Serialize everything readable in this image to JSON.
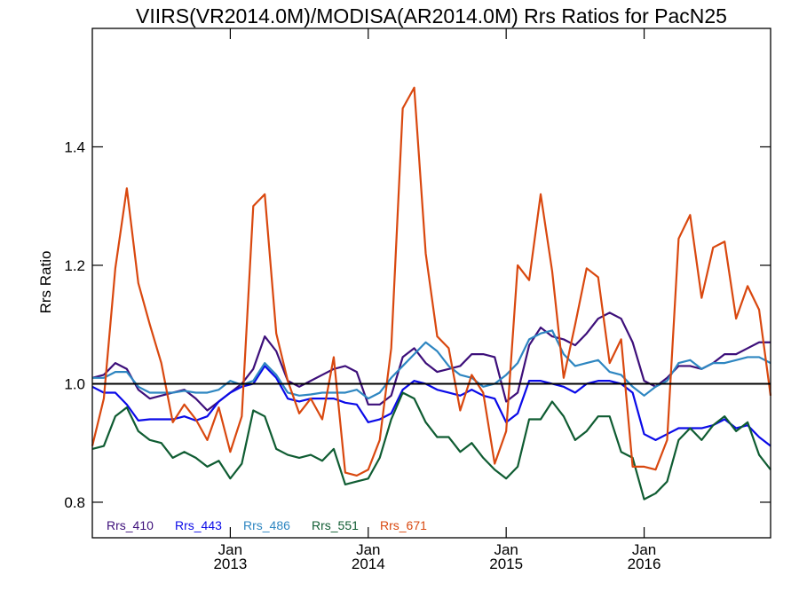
{
  "chart_data": {
    "type": "line",
    "title": "VIIRS(VR2014.0M)/MODISA(AR2014.0M)  Rrs Ratios for PacN25",
    "xlabel": "",
    "ylabel": "Rrs Ratio",
    "x_start": "2012-01",
    "x_end": "2016-12",
    "x_ticks": [
      {
        "month": "Jan",
        "year": "2013"
      },
      {
        "month": "Jan",
        "year": "2014"
      },
      {
        "month": "Jan",
        "year": "2015"
      },
      {
        "month": "Jan",
        "year": "2016"
      }
    ],
    "yticks": [
      "0.8",
      "1.0",
      "1.2",
      "1.4"
    ],
    "ylim": [
      0.74,
      1.6
    ],
    "reference_line": 1.0,
    "legend_position": "bottom-left",
    "x": [
      "2012-01",
      "2012-02",
      "2012-03",
      "2012-04",
      "2012-05",
      "2012-06",
      "2012-07",
      "2012-08",
      "2012-09",
      "2012-10",
      "2012-11",
      "2012-12",
      "2013-01",
      "2013-02",
      "2013-03",
      "2013-04",
      "2013-05",
      "2013-06",
      "2013-07",
      "2013-08",
      "2013-09",
      "2013-10",
      "2013-11",
      "2013-12",
      "2014-01",
      "2014-02",
      "2014-03",
      "2014-04",
      "2014-05",
      "2014-06",
      "2014-07",
      "2014-08",
      "2014-09",
      "2014-10",
      "2014-11",
      "2014-12",
      "2015-01",
      "2015-02",
      "2015-03",
      "2015-04",
      "2015-05",
      "2015-06",
      "2015-07",
      "2015-08",
      "2015-09",
      "2015-10",
      "2015-11",
      "2015-12",
      "2016-01",
      "2016-02",
      "2016-03",
      "2016-04",
      "2016-05",
      "2016-06",
      "2016-07",
      "2016-08",
      "2016-09",
      "2016-10",
      "2016-11",
      "2016-12"
    ],
    "series": [
      {
        "name": "Rrs_410",
        "color": "#3d0f7a",
        "values": [
          1.01,
          1.015,
          1.035,
          1.025,
          0.99,
          0.975,
          0.98,
          0.985,
          0.99,
          0.975,
          0.955,
          0.97,
          0.985,
          1.0,
          1.025,
          1.08,
          1.055,
          1.005,
          0.995,
          1.005,
          1.015,
          1.025,
          1.03,
          1.02,
          0.965,
          0.965,
          0.98,
          1.045,
          1.06,
          1.035,
          1.02,
          1.025,
          1.03,
          1.05,
          1.05,
          1.045,
          0.97,
          0.985,
          1.065,
          1.095,
          1.08,
          1.075,
          1.065,
          1.085,
          1.11,
          1.12,
          1.11,
          1.07,
          1.005,
          0.995,
          1.01,
          1.03,
          1.03,
          1.025,
          1.035,
          1.05,
          1.05,
          1.06,
          1.07,
          1.07
        ]
      },
      {
        "name": "Rrs_443",
        "color": "#0a0ae8",
        "values": [
          0.995,
          0.985,
          0.985,
          0.965,
          0.938,
          0.94,
          0.94,
          0.94,
          0.945,
          0.938,
          0.945,
          0.97,
          0.985,
          0.995,
          1.0,
          1.03,
          1.01,
          0.975,
          0.97,
          0.975,
          0.975,
          0.975,
          0.968,
          0.965,
          0.935,
          0.94,
          0.95,
          0.99,
          1.005,
          1.0,
          0.99,
          0.985,
          0.98,
          0.99,
          0.98,
          0.975,
          0.935,
          0.95,
          1.005,
          1.005,
          1.0,
          0.995,
          0.985,
          1.0,
          1.005,
          1.005,
          1.0,
          0.985,
          0.915,
          0.905,
          0.915,
          0.925,
          0.925,
          0.925,
          0.93,
          0.94,
          0.925,
          0.93,
          0.91,
          0.895
        ]
      },
      {
        "name": "Rrs_486",
        "color": "#2e86c1",
        "values": [
          1.01,
          1.01,
          1.02,
          1.02,
          0.995,
          0.985,
          0.985,
          0.985,
          0.988,
          0.985,
          0.985,
          0.99,
          1.005,
          0.998,
          1.005,
          1.035,
          1.015,
          0.985,
          0.98,
          0.982,
          0.985,
          0.985,
          0.985,
          0.99,
          0.975,
          0.985,
          1.01,
          1.03,
          1.05,
          1.07,
          1.055,
          1.03,
          1.015,
          1.01,
          0.995,
          1.0,
          1.015,
          1.035,
          1.075,
          1.085,
          1.09,
          1.05,
          1.03,
          1.035,
          1.04,
          1.02,
          1.015,
          0.995,
          0.98,
          0.995,
          1.005,
          1.035,
          1.04,
          1.025,
          1.035,
          1.035,
          1.04,
          1.045,
          1.045,
          1.035
        ]
      },
      {
        "name": "Rrs_551",
        "color": "#0f5c32",
        "values": [
          0.89,
          0.895,
          0.945,
          0.96,
          0.92,
          0.905,
          0.9,
          0.875,
          0.885,
          0.875,
          0.86,
          0.87,
          0.84,
          0.865,
          0.955,
          0.945,
          0.89,
          0.88,
          0.875,
          0.88,
          0.87,
          0.89,
          0.83,
          0.835,
          0.84,
          0.875,
          0.94,
          0.985,
          0.975,
          0.935,
          0.91,
          0.91,
          0.885,
          0.9,
          0.875,
          0.855,
          0.84,
          0.86,
          0.94,
          0.94,
          0.97,
          0.945,
          0.905,
          0.92,
          0.945,
          0.945,
          0.885,
          0.875,
          0.805,
          0.815,
          0.835,
          0.905,
          0.925,
          0.905,
          0.93,
          0.945,
          0.92,
          0.935,
          0.88,
          0.855
        ]
      },
      {
        "name": "Rrs_671",
        "color": "#d9480f",
        "values": [
          0.895,
          0.975,
          1.195,
          1.33,
          1.17,
          1.1,
          1.035,
          0.935,
          0.965,
          0.94,
          0.905,
          0.96,
          0.885,
          0.945,
          1.3,
          1.32,
          1.085,
          1.005,
          0.95,
          0.975,
          0.94,
          1.045,
          0.85,
          0.845,
          0.855,
          0.905,
          1.06,
          1.465,
          1.5,
          1.22,
          1.08,
          1.06,
          0.955,
          1.015,
          0.985,
          0.865,
          0.92,
          1.2,
          1.175,
          1.32,
          1.19,
          1.01,
          1.1,
          1.195,
          1.18,
          1.035,
          1.075,
          0.86,
          0.86,
          0.855,
          0.905,
          1.245,
          1.285,
          1.145,
          1.23,
          1.24,
          1.11,
          1.165,
          1.125,
          0.98
        ]
      }
    ]
  }
}
